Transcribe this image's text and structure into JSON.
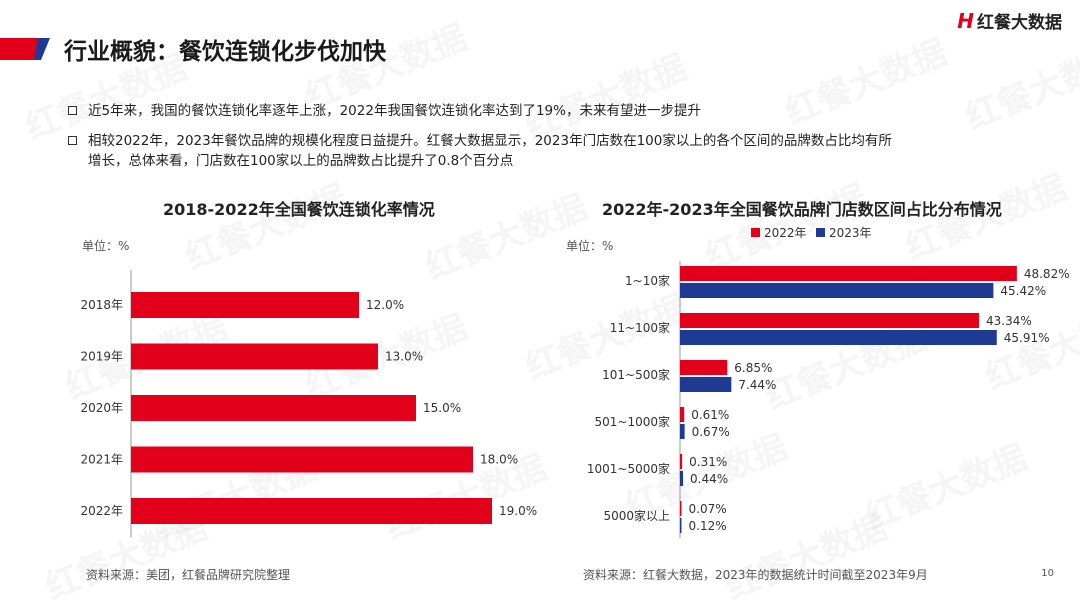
{
  "header": {
    "title": "行业概貌：餐饮连锁化步伐加快",
    "logo_text": "红餐大数据",
    "logo_mark": "H"
  },
  "watermark": "红餐大数据",
  "bullets": [
    "近5年来，我国的餐饮连锁化率逐年上涨，2022年我国餐饮连锁化率达到了19%，未来有望进一步提升",
    "相较2022年，2023年餐饮品牌的规模化程度日益提升。红餐大数据显示，2023年门店数在100家以上的各个区间的品牌数占比均有所",
    "增长，总体来看，门店数在100家以上的品牌数占比提升了0.8个百分点"
  ],
  "left_panel": {
    "unit": "单位：%",
    "source": "资料来源：美团，红餐品牌研究院整理"
  },
  "right_panel": {
    "unit": "单位：%",
    "source": "资料来源：红餐大数据，2023年的数据统计时间截至2023年9月"
  },
  "page_number": "10",
  "colors": {
    "red": "#e2001b",
    "blue": "#1f3a93"
  },
  "chart_data": [
    {
      "type": "bar",
      "orientation": "horizontal",
      "title": "2018-2022年全国餐饮连锁化率情况",
      "categories": [
        "2018年",
        "2019年",
        "2020年",
        "2021年",
        "2022年"
      ],
      "series": [
        {
          "values": [
            12.0,
            13.0,
            15.0,
            18.0,
            19.0
          ],
          "color": "#e2001b"
        }
      ],
      "data_labels": [
        "12.0%",
        "13.0%",
        "15.0%",
        "18.0%",
        "19.0%"
      ],
      "grid": false
    },
    {
      "type": "bar",
      "orientation": "horizontal",
      "title": "2022年-2023年全国餐饮品牌门店数区间占比分布情况",
      "categories": [
        "1~10家",
        "11~100家",
        "101~500家",
        "501~1000家",
        "1001~5000家",
        "5000家以上"
      ],
      "series": [
        {
          "name": "2022年",
          "values": [
            48.82,
            43.34,
            6.85,
            0.61,
            0.31,
            0.07
          ],
          "color": "#e2001b",
          "labels": [
            "48.82%",
            "43.34%",
            "6.85%",
            "0.61%",
            "0.31%",
            "0.07%"
          ]
        },
        {
          "name": "2023年",
          "values": [
            45.42,
            45.91,
            7.44,
            0.67,
            0.44,
            0.12
          ],
          "color": "#1f3a93",
          "labels": [
            "45.42%",
            "45.91%",
            "7.44%",
            "0.67%",
            "0.44%",
            "0.12%"
          ]
        }
      ],
      "legend_position": "top-right",
      "grid": false
    }
  ]
}
